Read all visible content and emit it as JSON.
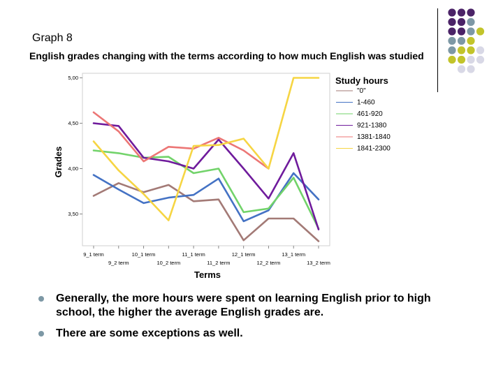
{
  "slide": {
    "label": "Graph 8",
    "bullets": [
      "Generally, the more hours were spent on learning English prior to high school, the higher the average English grades are.",
      "There are some exceptions as well."
    ]
  },
  "decoration": {
    "colors": [
      "#4b2367",
      "#7d98a5",
      "#c2c42a",
      "#d8d8e6"
    ]
  },
  "chart_data": {
    "type": "line",
    "title": "English grades changing with the terms according to how much English was studied",
    "xlabel": "Terms",
    "ylabel": "Grades",
    "legend_title": "Study hours",
    "legend_position": "right",
    "categories": [
      "9_1 term",
      "9_2 term",
      "10_1 term",
      "10_2 term",
      "11_1 term",
      "11_2 term",
      "12_1 term",
      "12_2 term",
      "13_1 term",
      "13_2 term"
    ],
    "yticks": [
      "5,00",
      "4,50",
      "4,00",
      "3,50"
    ],
    "ytick_values": [
      5.0,
      4.5,
      4.0,
      3.5
    ],
    "ylim": [
      3.15,
      5.05
    ],
    "series": [
      {
        "name": "\"0\"",
        "color": "#a37a76",
        "values": [
          3.7,
          3.84,
          3.74,
          3.82,
          3.64,
          3.66,
          3.21,
          3.45,
          3.45,
          3.2
        ]
      },
      {
        "name": "1-460",
        "color": "#4472c4",
        "values": [
          3.93,
          3.77,
          3.62,
          3.68,
          3.71,
          3.89,
          3.42,
          3.54,
          3.95,
          3.66
        ]
      },
      {
        "name": "461-920",
        "color": "#72d36a",
        "values": [
          4.2,
          4.17,
          4.12,
          4.13,
          3.95,
          4.0,
          3.52,
          3.56,
          3.9,
          3.34
        ]
      },
      {
        "name": "921-1380",
        "color": "#6f1b9c",
        "values": [
          4.5,
          4.47,
          4.12,
          4.08,
          4.0,
          4.32,
          4.0,
          3.67,
          4.17,
          3.33
        ]
      },
      {
        "name": "1381-1840",
        "color": "#ec7675",
        "values": [
          4.62,
          4.41,
          4.08,
          4.24,
          4.22,
          4.34,
          4.2,
          4.0,
          null,
          null
        ]
      },
      {
        "name": "1841-2300",
        "color": "#f6d543",
        "values": [
          4.3,
          3.98,
          3.72,
          3.43,
          4.25,
          4.26,
          4.33,
          4.0,
          5.0,
          5.0
        ]
      }
    ]
  }
}
